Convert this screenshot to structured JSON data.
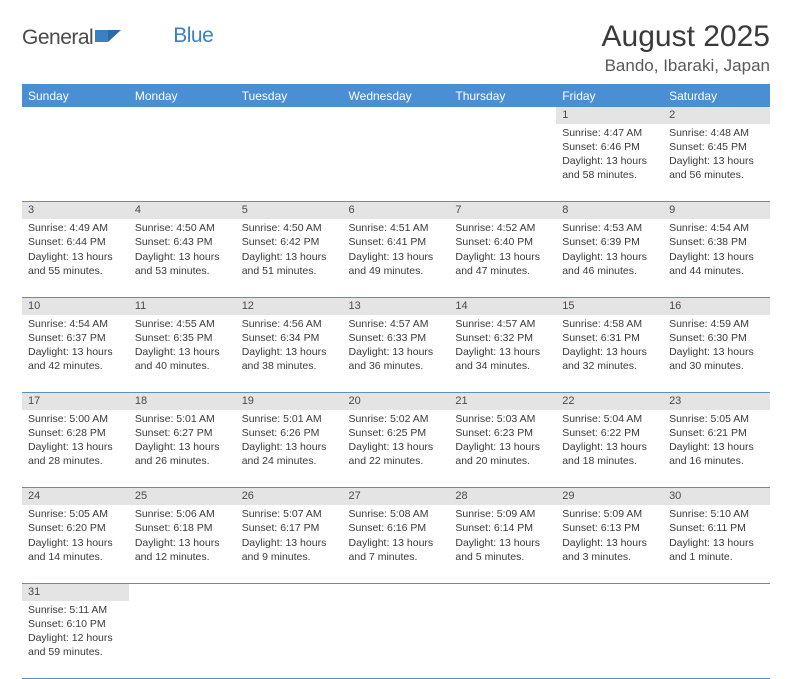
{
  "logo": {
    "part1": "General",
    "part2": "Blue"
  },
  "title": "August 2025",
  "location": "Bando, Ibaraki, Japan",
  "colors": {
    "header_bg": "#4a8fd4",
    "header_text": "#ffffff",
    "daynum_bg": "#e4e4e4",
    "cell_border": "#5a90c8",
    "logo_blue": "#3b7fc4",
    "logo_grey": "#4a4a4a"
  },
  "weekdays": [
    "Sunday",
    "Monday",
    "Tuesday",
    "Wednesday",
    "Thursday",
    "Friday",
    "Saturday"
  ],
  "weeks": [
    [
      null,
      null,
      null,
      null,
      null,
      {
        "n": "1",
        "sunrise": "4:47 AM",
        "sunset": "6:46 PM",
        "daylight": "13 hours and 58 minutes."
      },
      {
        "n": "2",
        "sunrise": "4:48 AM",
        "sunset": "6:45 PM",
        "daylight": "13 hours and 56 minutes."
      }
    ],
    [
      {
        "n": "3",
        "sunrise": "4:49 AM",
        "sunset": "6:44 PM",
        "daylight": "13 hours and 55 minutes."
      },
      {
        "n": "4",
        "sunrise": "4:50 AM",
        "sunset": "6:43 PM",
        "daylight": "13 hours and 53 minutes."
      },
      {
        "n": "5",
        "sunrise": "4:50 AM",
        "sunset": "6:42 PM",
        "daylight": "13 hours and 51 minutes."
      },
      {
        "n": "6",
        "sunrise": "4:51 AM",
        "sunset": "6:41 PM",
        "daylight": "13 hours and 49 minutes."
      },
      {
        "n": "7",
        "sunrise": "4:52 AM",
        "sunset": "6:40 PM",
        "daylight": "13 hours and 47 minutes."
      },
      {
        "n": "8",
        "sunrise": "4:53 AM",
        "sunset": "6:39 PM",
        "daylight": "13 hours and 46 minutes."
      },
      {
        "n": "9",
        "sunrise": "4:54 AM",
        "sunset": "6:38 PM",
        "daylight": "13 hours and 44 minutes."
      }
    ],
    [
      {
        "n": "10",
        "sunrise": "4:54 AM",
        "sunset": "6:37 PM",
        "daylight": "13 hours and 42 minutes."
      },
      {
        "n": "11",
        "sunrise": "4:55 AM",
        "sunset": "6:35 PM",
        "daylight": "13 hours and 40 minutes."
      },
      {
        "n": "12",
        "sunrise": "4:56 AM",
        "sunset": "6:34 PM",
        "daylight": "13 hours and 38 minutes."
      },
      {
        "n": "13",
        "sunrise": "4:57 AM",
        "sunset": "6:33 PM",
        "daylight": "13 hours and 36 minutes."
      },
      {
        "n": "14",
        "sunrise": "4:57 AM",
        "sunset": "6:32 PM",
        "daylight": "13 hours and 34 minutes."
      },
      {
        "n": "15",
        "sunrise": "4:58 AM",
        "sunset": "6:31 PM",
        "daylight": "13 hours and 32 minutes."
      },
      {
        "n": "16",
        "sunrise": "4:59 AM",
        "sunset": "6:30 PM",
        "daylight": "13 hours and 30 minutes."
      }
    ],
    [
      {
        "n": "17",
        "sunrise": "5:00 AM",
        "sunset": "6:28 PM",
        "daylight": "13 hours and 28 minutes."
      },
      {
        "n": "18",
        "sunrise": "5:01 AM",
        "sunset": "6:27 PM",
        "daylight": "13 hours and 26 minutes."
      },
      {
        "n": "19",
        "sunrise": "5:01 AM",
        "sunset": "6:26 PM",
        "daylight": "13 hours and 24 minutes."
      },
      {
        "n": "20",
        "sunrise": "5:02 AM",
        "sunset": "6:25 PM",
        "daylight": "13 hours and 22 minutes."
      },
      {
        "n": "21",
        "sunrise": "5:03 AM",
        "sunset": "6:23 PM",
        "daylight": "13 hours and 20 minutes."
      },
      {
        "n": "22",
        "sunrise": "5:04 AM",
        "sunset": "6:22 PM",
        "daylight": "13 hours and 18 minutes."
      },
      {
        "n": "23",
        "sunrise": "5:05 AM",
        "sunset": "6:21 PM",
        "daylight": "13 hours and 16 minutes."
      }
    ],
    [
      {
        "n": "24",
        "sunrise": "5:05 AM",
        "sunset": "6:20 PM",
        "daylight": "13 hours and 14 minutes."
      },
      {
        "n": "25",
        "sunrise": "5:06 AM",
        "sunset": "6:18 PM",
        "daylight": "13 hours and 12 minutes."
      },
      {
        "n": "26",
        "sunrise": "5:07 AM",
        "sunset": "6:17 PM",
        "daylight": "13 hours and 9 minutes."
      },
      {
        "n": "27",
        "sunrise": "5:08 AM",
        "sunset": "6:16 PM",
        "daylight": "13 hours and 7 minutes."
      },
      {
        "n": "28",
        "sunrise": "5:09 AM",
        "sunset": "6:14 PM",
        "daylight": "13 hours and 5 minutes."
      },
      {
        "n": "29",
        "sunrise": "5:09 AM",
        "sunset": "6:13 PM",
        "daylight": "13 hours and 3 minutes."
      },
      {
        "n": "30",
        "sunrise": "5:10 AM",
        "sunset": "6:11 PM",
        "daylight": "13 hours and 1 minute."
      }
    ],
    [
      {
        "n": "31",
        "sunrise": "5:11 AM",
        "sunset": "6:10 PM",
        "daylight": "12 hours and 59 minutes."
      },
      null,
      null,
      null,
      null,
      null,
      null
    ]
  ],
  "labels": {
    "sunrise": "Sunrise:",
    "sunset": "Sunset:",
    "daylight": "Daylight:"
  }
}
